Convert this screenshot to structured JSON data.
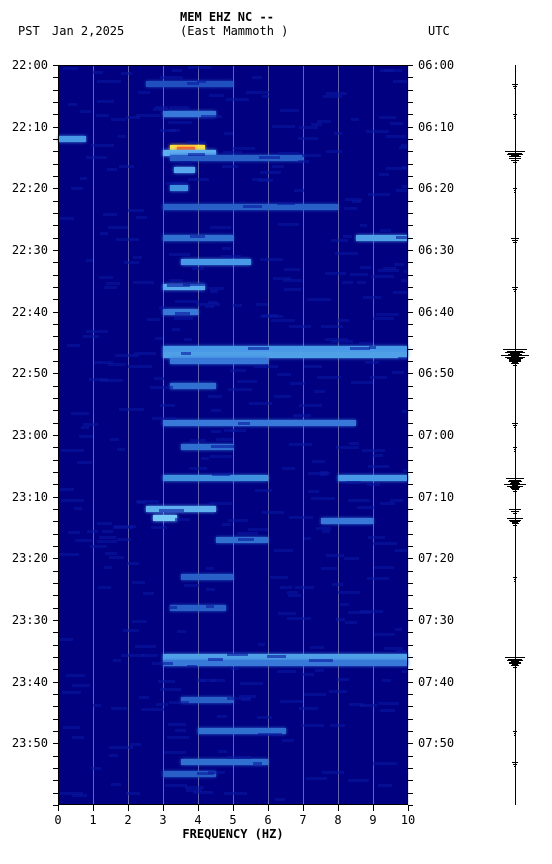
{
  "header": {
    "tz_left": "PST",
    "date": "Jan 2,2025",
    "station": "MEM EHZ NC --",
    "location": "(East Mammoth )",
    "tz_right": "UTC"
  },
  "spectrogram": {
    "type": "spectrogram",
    "background_color": "#000080",
    "grid_color": "rgba(200,200,220,0.5)",
    "xlim": [
      0,
      10
    ],
    "xtick_step": 1,
    "xlabel": "FREQUENCY (HZ)",
    "y_minutes": [
      0,
      120
    ],
    "y_left_start": "22:00",
    "y_right_start": "06:00",
    "y_tick_minutes": 10,
    "left_labels": [
      "22:00",
      "22:10",
      "22:20",
      "22:30",
      "22:40",
      "22:50",
      "23:00",
      "23:10",
      "23:20",
      "23:30",
      "23:40",
      "23:50"
    ],
    "right_labels": [
      "06:00",
      "06:10",
      "06:20",
      "06:30",
      "06:40",
      "06:50",
      "07:00",
      "07:10",
      "07:20",
      "07:30",
      "07:40",
      "07:50"
    ],
    "minor_tick_minutes": 2,
    "events": [
      {
        "t": 3,
        "f0": 2.5,
        "f1": 5.0,
        "c": "#2050c0"
      },
      {
        "t": 8,
        "f0": 3.0,
        "f1": 4.5,
        "c": "#3878d8"
      },
      {
        "t": 12,
        "f0": 0.0,
        "f1": 0.8,
        "c": "#4898e8"
      },
      {
        "t": 13.5,
        "f0": 3.2,
        "f1": 4.2,
        "c": "#ffe040"
      },
      {
        "t": 13.8,
        "f0": 3.4,
        "f1": 3.9,
        "c": "#ff6020"
      },
      {
        "t": 14.2,
        "f0": 3.0,
        "f1": 4.5,
        "c": "#60b0f0"
      },
      {
        "t": 15,
        "f0": 3.2,
        "f1": 7.0,
        "c": "#2860c8"
      },
      {
        "t": 17,
        "f0": 3.3,
        "f1": 3.9,
        "c": "#58a8f0"
      },
      {
        "t": 20,
        "f0": 3.2,
        "f1": 3.7,
        "c": "#4090e0"
      },
      {
        "t": 23,
        "f0": 3.0,
        "f1": 8.0,
        "c": "#2860c8"
      },
      {
        "t": 28,
        "f0": 8.5,
        "f1": 10.0,
        "c": "#50a0e8"
      },
      {
        "t": 28,
        "f0": 3.0,
        "f1": 5.0,
        "c": "#3070d0"
      },
      {
        "t": 32,
        "f0": 3.5,
        "f1": 5.5,
        "c": "#4898e8"
      },
      {
        "t": 36,
        "f0": 3.0,
        "f1": 4.2,
        "c": "#58a8f0"
      },
      {
        "t": 40,
        "f0": 3.0,
        "f1": 4.0,
        "c": "#3878d8"
      },
      {
        "t": 46,
        "f0": 3.0,
        "f1": 10.0,
        "c": "#4898e8"
      },
      {
        "t": 47,
        "f0": 3.0,
        "f1": 10.0,
        "c": "#50a0e8"
      },
      {
        "t": 48,
        "f0": 3.2,
        "f1": 6.0,
        "c": "#3878d8"
      },
      {
        "t": 52,
        "f0": 3.2,
        "f1": 4.5,
        "c": "#3070d0"
      },
      {
        "t": 58,
        "f0": 3.0,
        "f1": 8.5,
        "c": "#3878d8"
      },
      {
        "t": 62,
        "f0": 3.5,
        "f1": 5.0,
        "c": "#3070d0"
      },
      {
        "t": 67,
        "f0": 3.0,
        "f1": 6.0,
        "c": "#4090e0"
      },
      {
        "t": 67,
        "f0": 8.0,
        "f1": 10.0,
        "c": "#4898e8"
      },
      {
        "t": 72,
        "f0": 2.5,
        "f1": 4.5,
        "c": "#60b0f0"
      },
      {
        "t": 73.5,
        "f0": 2.7,
        "f1": 3.4,
        "c": "#78c8f8"
      },
      {
        "t": 74,
        "f0": 7.5,
        "f1": 9.0,
        "c": "#3878d8"
      },
      {
        "t": 77,
        "f0": 4.5,
        "f1": 6.0,
        "c": "#3070d0"
      },
      {
        "t": 83,
        "f0": 3.5,
        "f1": 5.0,
        "c": "#2860c8"
      },
      {
        "t": 88,
        "f0": 3.2,
        "f1": 4.8,
        "c": "#2860c8"
      },
      {
        "t": 96,
        "f0": 3.0,
        "f1": 10.0,
        "c": "#50a0e8"
      },
      {
        "t": 97,
        "f0": 3.0,
        "f1": 10.0,
        "c": "#3878d8"
      },
      {
        "t": 103,
        "f0": 3.5,
        "f1": 5.0,
        "c": "#2860c8"
      },
      {
        "t": 108,
        "f0": 4.0,
        "f1": 6.5,
        "c": "#3070d0"
      },
      {
        "t": 113,
        "f0": 3.5,
        "f1": 6.0,
        "c": "#3070d0"
      },
      {
        "t": 115,
        "f0": 3.0,
        "f1": 4.5,
        "c": "#2860c8"
      }
    ]
  },
  "seismogram": {
    "baseline_color": "#000000",
    "spikes": [
      {
        "t": 3,
        "a": 3
      },
      {
        "t": 8,
        "a": 2
      },
      {
        "t": 14,
        "a": 10
      },
      {
        "t": 14.5,
        "a": 8
      },
      {
        "t": 15,
        "a": 6
      },
      {
        "t": 20,
        "a": 2
      },
      {
        "t": 28,
        "a": 4
      },
      {
        "t": 36,
        "a": 3
      },
      {
        "t": 46,
        "a": 12
      },
      {
        "t": 46.5,
        "a": 10
      },
      {
        "t": 47,
        "a": 14
      },
      {
        "t": 47.5,
        "a": 8
      },
      {
        "t": 48,
        "a": 6
      },
      {
        "t": 58,
        "a": 3
      },
      {
        "t": 62,
        "a": 2
      },
      {
        "t": 67,
        "a": 9
      },
      {
        "t": 67.5,
        "a": 7
      },
      {
        "t": 68,
        "a": 11
      },
      {
        "t": 68.5,
        "a": 5
      },
      {
        "t": 72,
        "a": 6
      },
      {
        "t": 73.5,
        "a": 8
      },
      {
        "t": 74,
        "a": 5
      },
      {
        "t": 83,
        "a": 2
      },
      {
        "t": 96,
        "a": 10
      },
      {
        "t": 96.5,
        "a": 8
      },
      {
        "t": 97,
        "a": 6
      },
      {
        "t": 108,
        "a": 2
      },
      {
        "t": 113,
        "a": 3
      }
    ]
  },
  "fonts": {
    "header_size": 12,
    "tick_size": 12,
    "weight_bold": "bold"
  }
}
